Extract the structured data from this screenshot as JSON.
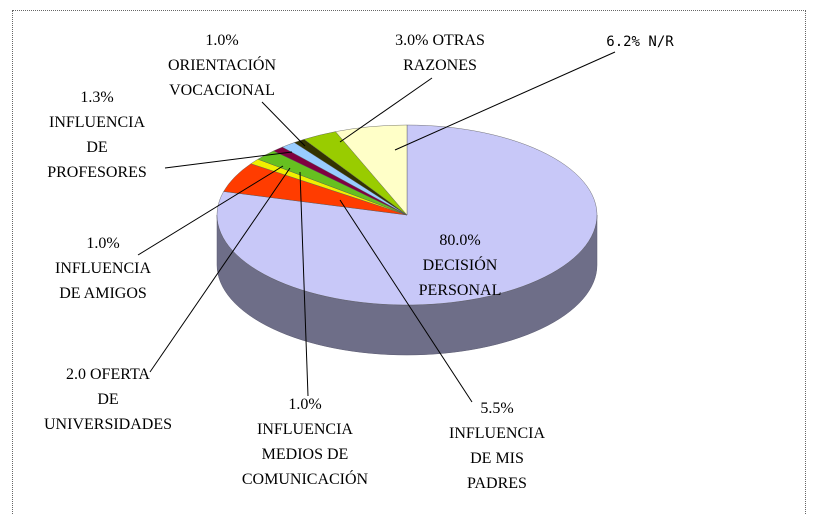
{
  "chart_data": {
    "type": "pie",
    "categories": [
      "DECISIÓN\nPERSONAL",
      "INFLUENCIA\nDE MIS\nPADRES",
      "INFLUENCIA\nMEDIOS DE\nCOMUNICACIÓN",
      "OFERTA\nDE\nUNIVERSIDADES",
      "INFLUENCIA\nDE AMIGOS",
      "INFLUENCIA\nDE\nPROFESORES",
      "ORIENTACIÓN\nVOCACIONAL",
      "OTRAS\nRAZONES",
      "N/R"
    ],
    "values": [
      80.0,
      5.5,
      1.0,
      2.0,
      1.0,
      1.3,
      1.0,
      3.0,
      6.2
    ],
    "value_labels": [
      "80.0%",
      "5.5%",
      "1.0%",
      "2.0",
      "1.0%",
      "1.3%",
      "1.0%",
      "3.0%",
      "6.2%"
    ],
    "colors": [
      "#c8c8f8",
      "#ff3c00",
      "#f0f000",
      "#66c020",
      "#800040",
      "#99ccff",
      "#333300",
      "#99cc00",
      "#ffffc8"
    ]
  }
}
